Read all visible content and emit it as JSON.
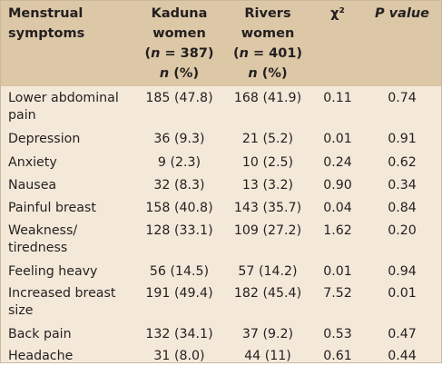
{
  "header": {
    "col0_line1": "Menstrual",
    "col0_line2": "symptoms",
    "col1_line1": "Kaduna",
    "col1_line2": "women",
    "col1_line3": "(n = 387)",
    "col1_line4": "n (%)",
    "col2_line1": "Rivers",
    "col2_line2": "women",
    "col2_line3": "(n = 401)",
    "col2_line4": "n (%)",
    "col3": "χ²",
    "col4": "P value"
  },
  "rows": [
    {
      "symptom_1": "Lower abdominal",
      "symptom_2": "pain",
      "kaduna": "185 (47.8)",
      "rivers": "168 (41.9)",
      "chi": "0.11",
      "p": "0.74"
    },
    {
      "symptom_1": "Depression",
      "symptom_2": "",
      "kaduna": "36 (9.3)",
      "rivers": "21 (5.2)",
      "chi": "0.01",
      "p": "0.91"
    },
    {
      "symptom_1": "Anxiety",
      "symptom_2": "",
      "kaduna": "9 (2.3)",
      "rivers": "10 (2.5)",
      "chi": "0.24",
      "p": "0.62"
    },
    {
      "symptom_1": "Nausea",
      "symptom_2": "",
      "kaduna": "32 (8.3)",
      "rivers": "13 (3.2)",
      "chi": "0.90",
      "p": "0.34"
    },
    {
      "symptom_1": "Painful breast",
      "symptom_2": "",
      "kaduna": "158 (40.8)",
      "rivers": "143 (35.7)",
      "chi": "0.04",
      "p": "0.84"
    },
    {
      "symptom_1": "Weakness/",
      "symptom_2": "tiredness",
      "kaduna": "128 (33.1)",
      "rivers": "109 (27.2)",
      "chi": "1.62",
      "p": "0.20"
    },
    {
      "symptom_1": "Feeling heavy",
      "symptom_2": "",
      "kaduna": "56 (14.5)",
      "rivers": "57 (14.2)",
      "chi": "0.01",
      "p": "0.94"
    },
    {
      "symptom_1": "Increased breast",
      "symptom_2": "size",
      "kaduna": "191 (49.4)",
      "rivers": "182 (45.4)",
      "chi": "7.52",
      "p": "0.01"
    },
    {
      "symptom_1": "Back pain",
      "symptom_2": "",
      "kaduna": "132 (34.1)",
      "rivers": "37 (9.2)",
      "chi": "0.53",
      "p": "0.47"
    },
    {
      "symptom_1": "Headache",
      "symptom_2": "",
      "kaduna": "31 (8.0)",
      "rivers": "44 (11)",
      "chi": "0.61",
      "p": "0.44"
    }
  ],
  "colors": {
    "header_bg": "#dcc7a6",
    "body_bg": "#f4e9d9"
  }
}
